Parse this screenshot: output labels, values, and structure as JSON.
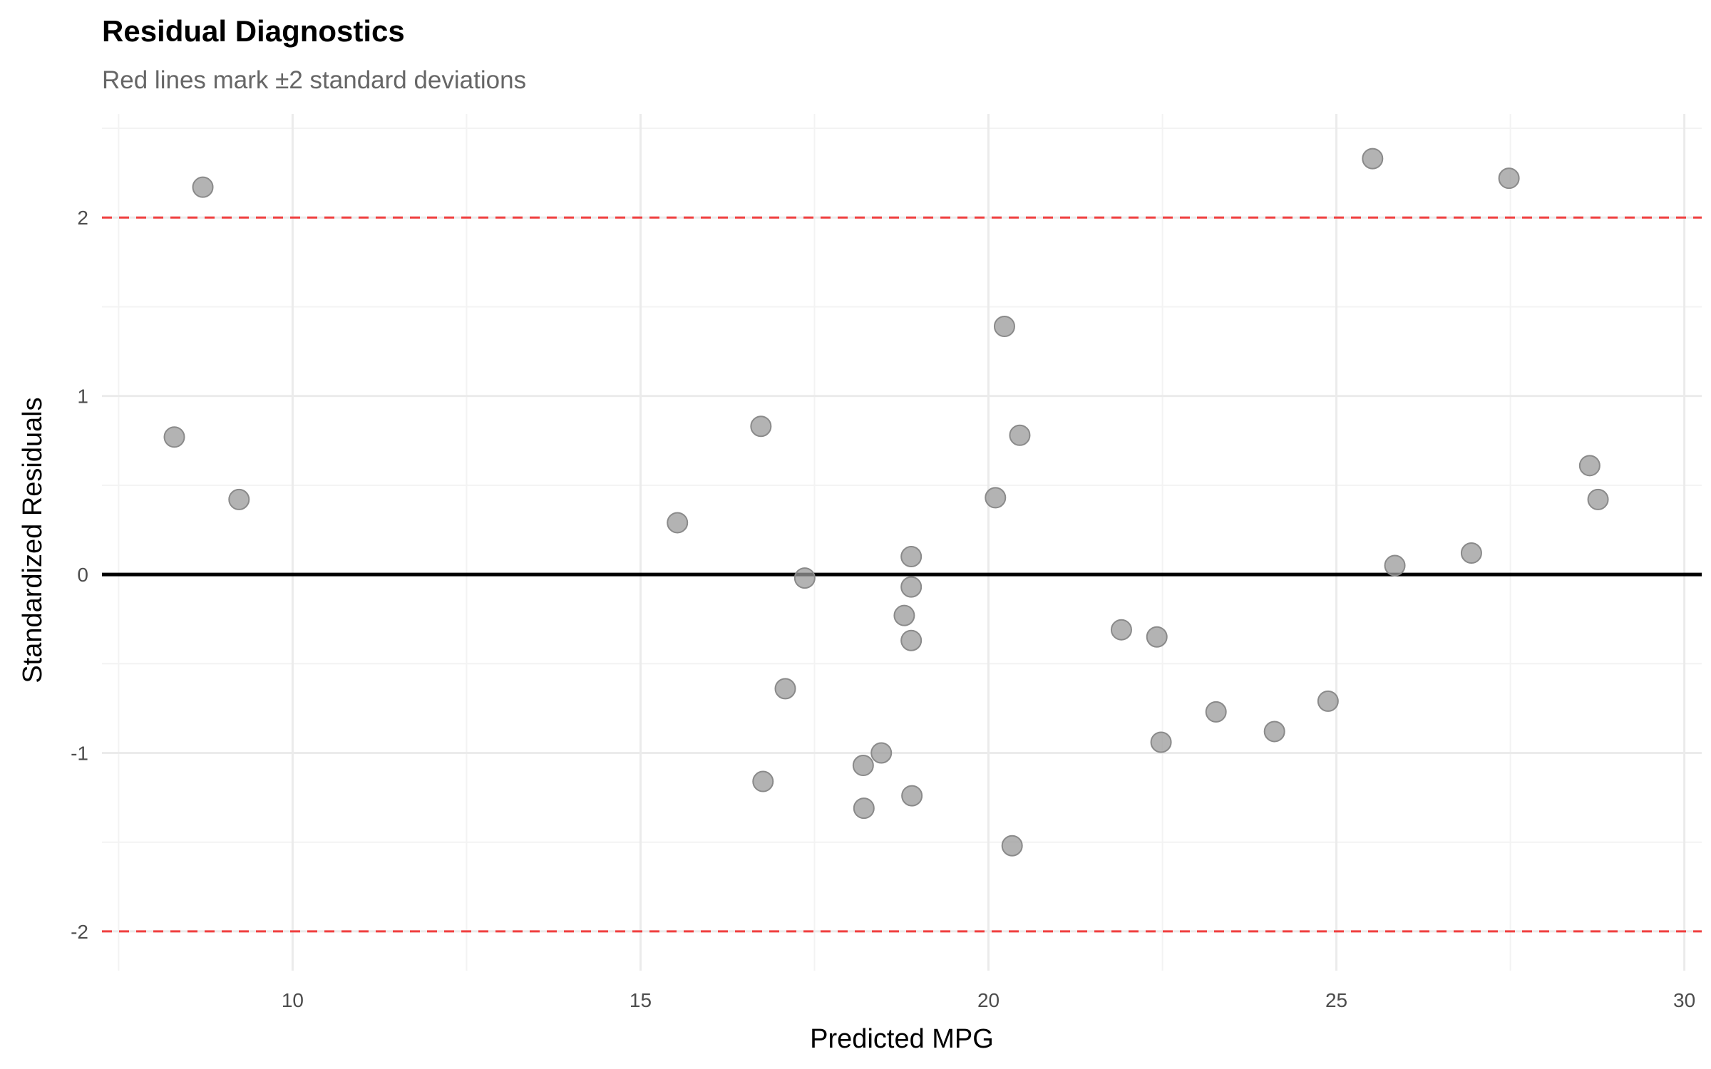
{
  "chart_data": {
    "type": "scatter",
    "title": "Residual Diagnostics",
    "subtitle": "Red lines mark ±2 standard deviations",
    "xlabel": "Predicted MPG",
    "ylabel": "Standardized Residuals",
    "xlim": [
      7.26,
      30.25
    ],
    "ylim": [
      -2.22,
      2.58
    ],
    "x_ticks": [
      10,
      15,
      20,
      25,
      30
    ],
    "y_ticks": [
      -2,
      -1,
      0,
      1,
      2
    ],
    "x_tick_labels": [
      "10",
      "15",
      "20",
      "25",
      "30"
    ],
    "y_tick_labels": [
      "-2",
      "-1",
      "0",
      "1",
      "2"
    ],
    "grid": true,
    "reference_lines": [
      {
        "y": 0,
        "color": "#000000",
        "style": "solid"
      },
      {
        "y": 2,
        "color": "#f04040",
        "style": "dashed"
      },
      {
        "y": -2,
        "color": "#f04040",
        "style": "dashed"
      }
    ],
    "point_color": "#999999",
    "points": [
      [
        8.71,
        2.17
      ],
      [
        8.3,
        0.77
      ],
      [
        9.23,
        0.42
      ],
      [
        15.53,
        0.29
      ],
      [
        16.73,
        0.83
      ],
      [
        17.36,
        -0.02
      ],
      [
        17.08,
        -0.64
      ],
      [
        16.76,
        -1.16
      ],
      [
        18.2,
        -1.07
      ],
      [
        18.21,
        -1.31
      ],
      [
        18.46,
        -1.0
      ],
      [
        18.79,
        -0.23
      ],
      [
        18.89,
        0.1
      ],
      [
        18.89,
        -0.07
      ],
      [
        18.89,
        -0.37
      ],
      [
        18.9,
        -1.24
      ],
      [
        20.1,
        0.43
      ],
      [
        20.23,
        1.39
      ],
      [
        20.45,
        0.78
      ],
      [
        20.34,
        -1.52
      ],
      [
        21.91,
        -0.31
      ],
      [
        22.42,
        -0.35
      ],
      [
        22.48,
        -0.94
      ],
      [
        23.27,
        -0.77
      ],
      [
        24.11,
        -0.88
      ],
      [
        24.88,
        -0.71
      ],
      [
        25.52,
        2.33
      ],
      [
        25.84,
        0.05
      ],
      [
        26.94,
        0.12
      ],
      [
        27.48,
        2.22
      ],
      [
        28.64,
        0.61
      ],
      [
        28.76,
        0.42
      ]
    ]
  }
}
